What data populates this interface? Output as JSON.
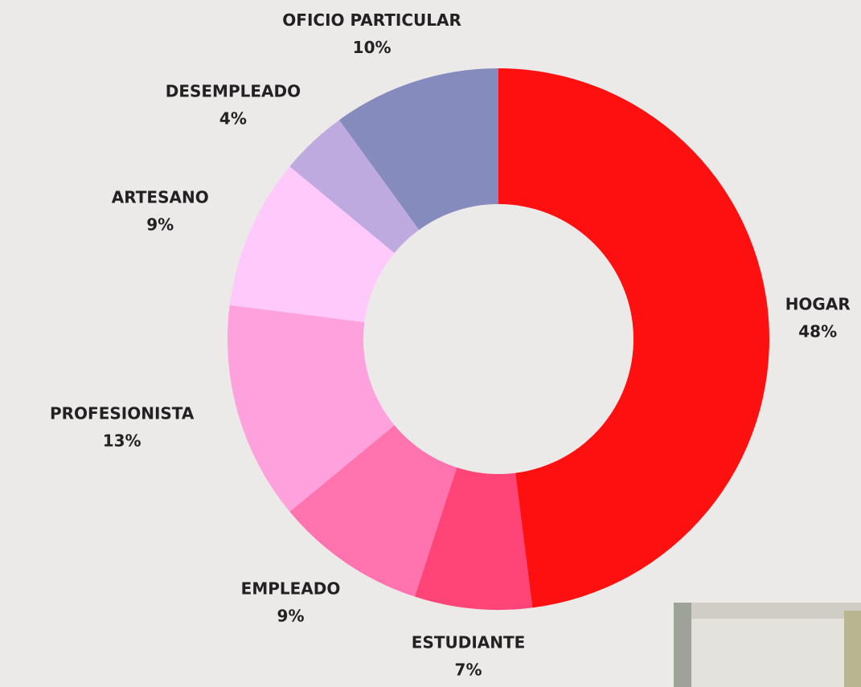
{
  "chart_data": {
    "type": "donut",
    "categories": [
      "HOGAR",
      "ESTUDIANTE",
      "EMPLEADO",
      "PROFESIONISTA",
      "ARTESANO",
      "DESEMPLEADO",
      "OFICIO PARTICULAR"
    ],
    "values": [
      48,
      7,
      9,
      13,
      9,
      4,
      10
    ],
    "value_labels": [
      "48%",
      "7%",
      "9%",
      "13%",
      "9%",
      "4%",
      "10%"
    ],
    "colors": [
      "#ff1010",
      "#ff4577",
      "#ff74ae",
      "#ffa1dd",
      "#ffc9fb",
      "#bfaadf",
      "#868bbd"
    ]
  }
}
